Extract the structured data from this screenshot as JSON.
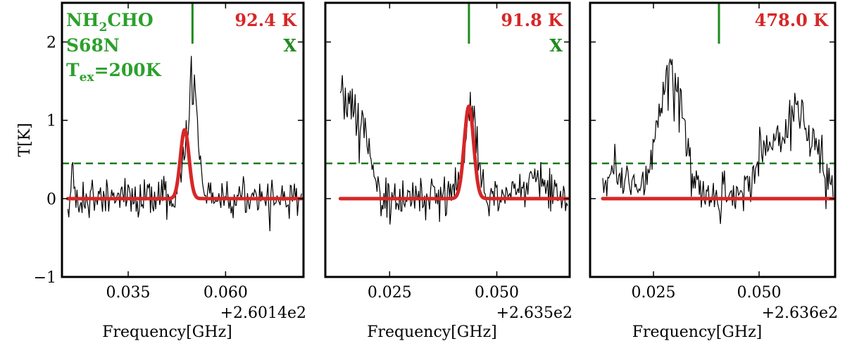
{
  "chart_data": [
    {
      "type": "line",
      "title": "",
      "xlabel": "Frequency[GHz]",
      "ylabel": "T[K]",
      "x_offset_label": "+2.6014e2",
      "xlim": [
        0.018,
        0.08
      ],
      "ylim": [
        -1,
        2.5
      ],
      "xticks": [
        {
          "value": 0.035,
          "label": "0.035"
        },
        {
          "value": 0.06,
          "label": "0.060"
        }
      ],
      "yticks": [
        {
          "value": -1,
          "label": "−1"
        },
        {
          "value": 0,
          "label": "0"
        },
        {
          "value": 1,
          "label": "1"
        },
        {
          "value": 2,
          "label": "2"
        }
      ],
      "temperature_label": "92.4 K",
      "flag_label": "X",
      "annotation": {
        "molecule": "NH",
        "molecule_sub": "2",
        "molecule_rest": "CHO",
        "source": "S68N",
        "tex_prefix": "T",
        "tex_sub": "ex",
        "tex_value": "=200K"
      },
      "marker_x": 0.0515,
      "threshold_y": 0.45,
      "model": {
        "center": 0.0495,
        "amplitude": 0.88,
        "sigma": 0.0011
      },
      "spectrum": {
        "x_start": 0.0195,
        "x_end": 0.0795,
        "seed": 11,
        "noise": 0.12,
        "features": [
          {
            "center": 0.0515,
            "amp": 1.55,
            "width": 0.0012
          },
          {
            "center": 0.0488,
            "amp": 0.3,
            "width": 0.0008
          },
          {
            "center": 0.0441,
            "amp": 0.3,
            "width": 0.0004
          },
          {
            "center": 0.0207,
            "amp": 0.35,
            "width": 0.0004
          }
        ]
      }
    },
    {
      "type": "line",
      "title": "",
      "xlabel": "Frequency[GHz]",
      "ylabel": "",
      "x_offset_label": "+2.635e2",
      "xlim": [
        0.01,
        0.067
      ],
      "ylim": [
        -1,
        2.5
      ],
      "xticks": [
        {
          "value": 0.025,
          "label": "0.025"
        },
        {
          "value": 0.05,
          "label": "0.050"
        }
      ],
      "yticks": [
        {
          "value": -1,
          "label": ""
        },
        {
          "value": 0,
          "label": ""
        },
        {
          "value": 1,
          "label": ""
        },
        {
          "value": 2,
          "label": ""
        }
      ],
      "temperature_label": "91.8 K",
      "flag_label": "X",
      "marker_x": 0.0435,
      "threshold_y": 0.45,
      "model": {
        "center": 0.0435,
        "amplitude": 1.18,
        "sigma": 0.0011
      },
      "spectrum": {
        "x_start": 0.0135,
        "x_end": 0.0665,
        "seed": 23,
        "noise": 0.13,
        "features": [
          {
            "center": 0.0152,
            "amp": 1.2,
            "width": 0.003
          },
          {
            "center": 0.044,
            "amp": 1.0,
            "width": 0.0016
          },
          {
            "center": 0.02,
            "amp": 0.35,
            "width": 0.0012
          },
          {
            "center": 0.058,
            "amp": 0.2,
            "width": 0.004
          }
        ]
      }
    },
    {
      "type": "line",
      "title": "",
      "xlabel": "Frequency[GHz]",
      "ylabel": "",
      "x_offset_label": "+2.636e2",
      "xlim": [
        0.01,
        0.068
      ],
      "ylim": [
        -1,
        2.5
      ],
      "xticks": [
        {
          "value": 0.025,
          "label": "0.025"
        },
        {
          "value": 0.05,
          "label": "0.050"
        }
      ],
      "yticks": [
        {
          "value": -1,
          "label": ""
        },
        {
          "value": 0,
          "label": ""
        },
        {
          "value": 1,
          "label": ""
        },
        {
          "value": 2,
          "label": ""
        }
      ],
      "temperature_label": "478.0 K",
      "flag_label": "",
      "marker_x": 0.0405,
      "threshold_y": 0.45,
      "model": {
        "center": 0.0405,
        "amplitude": 0.0,
        "sigma": 0.0011
      },
      "spectrum": {
        "x_start": 0.013,
        "x_end": 0.0675,
        "seed": 37,
        "noise": 0.14,
        "features": [
          {
            "center": 0.029,
            "amp": 1.6,
            "width": 0.003
          },
          {
            "center": 0.06,
            "amp": 1.0,
            "width": 0.004
          },
          {
            "center": 0.052,
            "amp": 0.55,
            "width": 0.004
          },
          {
            "center": 0.016,
            "amp": 0.3,
            "width": 0.002
          },
          {
            "center": 0.021,
            "amp": 0.15,
            "width": 0.002
          }
        ]
      }
    }
  ]
}
